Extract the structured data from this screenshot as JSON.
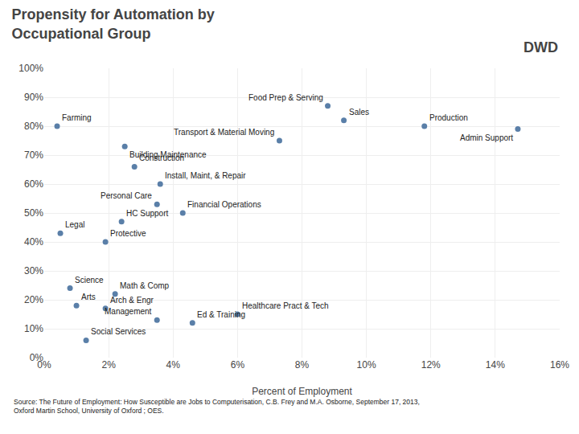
{
  "chart_data": {
    "type": "scatter",
    "title": "Propensity for Automation by\nOccupational Group",
    "xlabel": "Percent of Employment",
    "color": "#5a7fa8",
    "grid": true,
    "labels": [
      "Food Prep & Serving",
      "Sales",
      "Farming",
      "Production",
      "Admin Support",
      "Transport & Material Moving",
      "Building Maintenance",
      "Construction",
      "Install, Maint, & Repair",
      "Personal Care",
      "Financial Operations",
      "HC Support",
      "Legal",
      "Protective",
      "Science",
      "Math & Comp",
      "Arts",
      "Arch & Engr",
      "Healthcare Pract & Tech",
      "Management",
      "Ed & Training",
      "Social Services"
    ],
    "x": [
      8.8,
      9.3,
      0.4,
      11.8,
      14.7,
      7.3,
      2.5,
      2.8,
      3.6,
      3.5,
      4.3,
      2.4,
      0.5,
      1.9,
      0.8,
      2.2,
      1.0,
      1.9,
      6.0,
      3.5,
      4.6,
      1.3
    ],
    "values": [
      87,
      82,
      80,
      80,
      79,
      75,
      73,
      66,
      60,
      53,
      50,
      47,
      43,
      40,
      24,
      22,
      18,
      17,
      15,
      13,
      12,
      6
    ],
    "xlim": [
      0,
      16
    ],
    "ylim": [
      0,
      100
    ],
    "xticks": [
      {
        "value": 0,
        "label": "0%"
      },
      {
        "value": 2,
        "label": "2%"
      },
      {
        "value": 4,
        "label": "4%"
      },
      {
        "value": 6,
        "label": "6%"
      },
      {
        "value": 8,
        "label": "8%"
      },
      {
        "value": 10,
        "label": "10%"
      },
      {
        "value": 12,
        "label": "12%"
      },
      {
        "value": 14,
        "label": "14%"
      },
      {
        "value": 16,
        "label": "16%"
      }
    ],
    "yticks": [
      {
        "value": 0,
        "label": "0%"
      },
      {
        "value": 10,
        "label": "10%"
      },
      {
        "value": 20,
        "label": "20%"
      },
      {
        "value": 30,
        "label": "30%"
      },
      {
        "value": 40,
        "label": "40%"
      },
      {
        "value": 50,
        "label": "50%"
      },
      {
        "value": 60,
        "label": "60%"
      },
      {
        "value": 70,
        "label": "70%"
      },
      {
        "value": 80,
        "label": "80%"
      },
      {
        "value": 90,
        "label": "90%"
      },
      {
        "value": 100,
        "label": "100%"
      }
    ],
    "annotations": [
      "DWD",
      "Source: The Future of Employment: How Susceptible are Jobs to Computerisation, C.B. Frey and M.A. Osborne, September 17, 2013,\nOxford Martin School, University of Oxford ; OES."
    ]
  }
}
